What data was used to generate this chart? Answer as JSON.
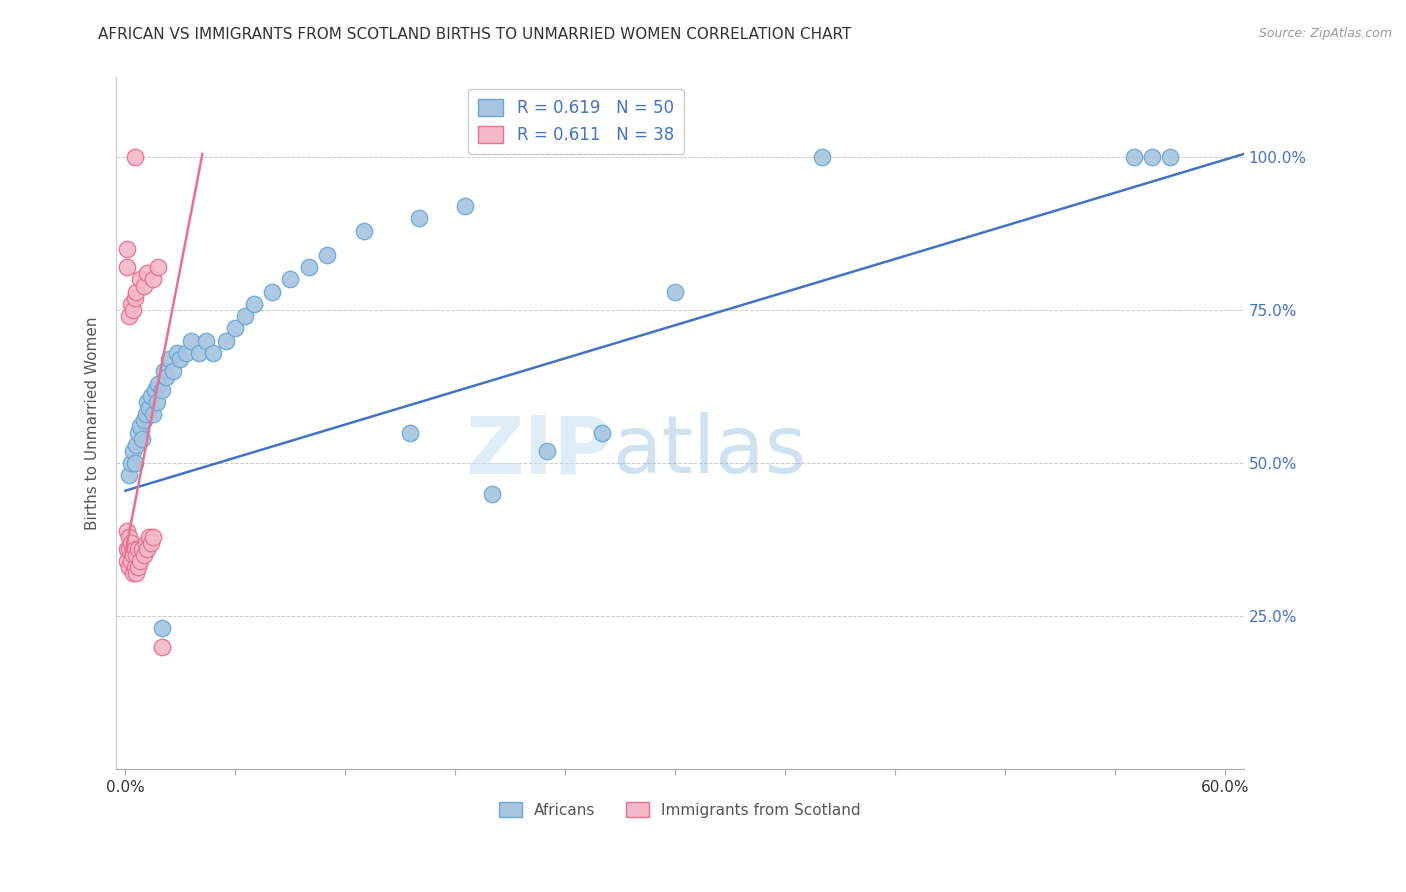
{
  "title": "AFRICAN VS IMMIGRANTS FROM SCOTLAND BIRTHS TO UNMARRIED WOMEN CORRELATION CHART",
  "source": "Source: ZipAtlas.com",
  "ylabel": "Births to Unmarried Women",
  "x_ticklabels_ends": [
    "0.0%",
    "60.0%"
  ],
  "x_ticks": [
    0.0,
    0.06,
    0.12,
    0.18,
    0.24,
    0.3,
    0.36,
    0.42,
    0.48,
    0.54,
    0.6
  ],
  "x_ticks_labeled": [
    0.0,
    0.6
  ],
  "y_ticklabels_right": [
    "25.0%",
    "50.0%",
    "75.0%",
    "100.0%"
  ],
  "y_ticks": [
    0.25,
    0.5,
    0.75,
    1.0
  ],
  "xlim": [
    -0.005,
    0.61
  ],
  "ylim": [
    0.0,
    1.13
  ],
  "africans_color": "#a8c4e0",
  "africans_edge_color": "#6aaad4",
  "scotland_color": "#f4b8c8",
  "scotland_edge_color": "#e87090",
  "africans_R": 0.619,
  "africans_N": 50,
  "scotland_R": 0.611,
  "scotland_N": 38,
  "legend_label_africans": "Africans",
  "legend_label_scotland": "Immigrants from Scotland",
  "watermark_zip": "ZIP",
  "watermark_atlas": "atlas",
  "blue_line_x": [
    0.0,
    0.61
  ],
  "blue_line_y": [
    0.455,
    1.005
  ],
  "pink_line_x": [
    0.0,
    0.042
  ],
  "pink_line_y": [
    0.355,
    1.005
  ],
  "background_color": "#ffffff",
  "grid_color": "#cccccc",
  "title_color": "#333333",
  "axis_label_color": "#555555",
  "right_tick_color": "#4472c4",
  "marker_size": 140,
  "africans_x": [
    0.002,
    0.003,
    0.004,
    0.005,
    0.006,
    0.007,
    0.008,
    0.009,
    0.01,
    0.011,
    0.012,
    0.013,
    0.014,
    0.015,
    0.016,
    0.017,
    0.018,
    0.02,
    0.021,
    0.022,
    0.024,
    0.026,
    0.028,
    0.03,
    0.033,
    0.036,
    0.04,
    0.044,
    0.048,
    0.055,
    0.06,
    0.065,
    0.07,
    0.08,
    0.09,
    0.1,
    0.11,
    0.13,
    0.16,
    0.185,
    0.2,
    0.23,
    0.26,
    0.3,
    0.38,
    0.55,
    0.57,
    0.02,
    0.155,
    0.56
  ],
  "africans_y": [
    0.48,
    0.5,
    0.52,
    0.5,
    0.53,
    0.55,
    0.56,
    0.54,
    0.57,
    0.58,
    0.6,
    0.59,
    0.61,
    0.58,
    0.62,
    0.6,
    0.63,
    0.62,
    0.65,
    0.64,
    0.67,
    0.65,
    0.68,
    0.67,
    0.68,
    0.7,
    0.68,
    0.7,
    0.68,
    0.7,
    0.72,
    0.74,
    0.76,
    0.78,
    0.8,
    0.82,
    0.84,
    0.88,
    0.9,
    0.92,
    0.45,
    0.52,
    0.55,
    0.78,
    1.0,
    1.0,
    1.0,
    0.23,
    0.55,
    1.0
  ],
  "scotland_x": [
    0.001,
    0.001,
    0.001,
    0.002,
    0.002,
    0.002,
    0.003,
    0.003,
    0.004,
    0.004,
    0.005,
    0.005,
    0.006,
    0.006,
    0.007,
    0.007,
    0.008,
    0.009,
    0.01,
    0.011,
    0.012,
    0.013,
    0.014,
    0.015,
    0.002,
    0.003,
    0.004,
    0.005,
    0.006,
    0.008,
    0.01,
    0.012,
    0.015,
    0.018,
    0.001,
    0.001,
    0.005,
    0.02
  ],
  "scotland_y": [
    0.34,
    0.36,
    0.39,
    0.33,
    0.36,
    0.38,
    0.34,
    0.37,
    0.32,
    0.35,
    0.33,
    0.36,
    0.32,
    0.35,
    0.33,
    0.36,
    0.34,
    0.36,
    0.35,
    0.37,
    0.36,
    0.38,
    0.37,
    0.38,
    0.74,
    0.76,
    0.75,
    0.77,
    0.78,
    0.8,
    0.79,
    0.81,
    0.8,
    0.82,
    0.82,
    0.85,
    1.0,
    0.2
  ]
}
